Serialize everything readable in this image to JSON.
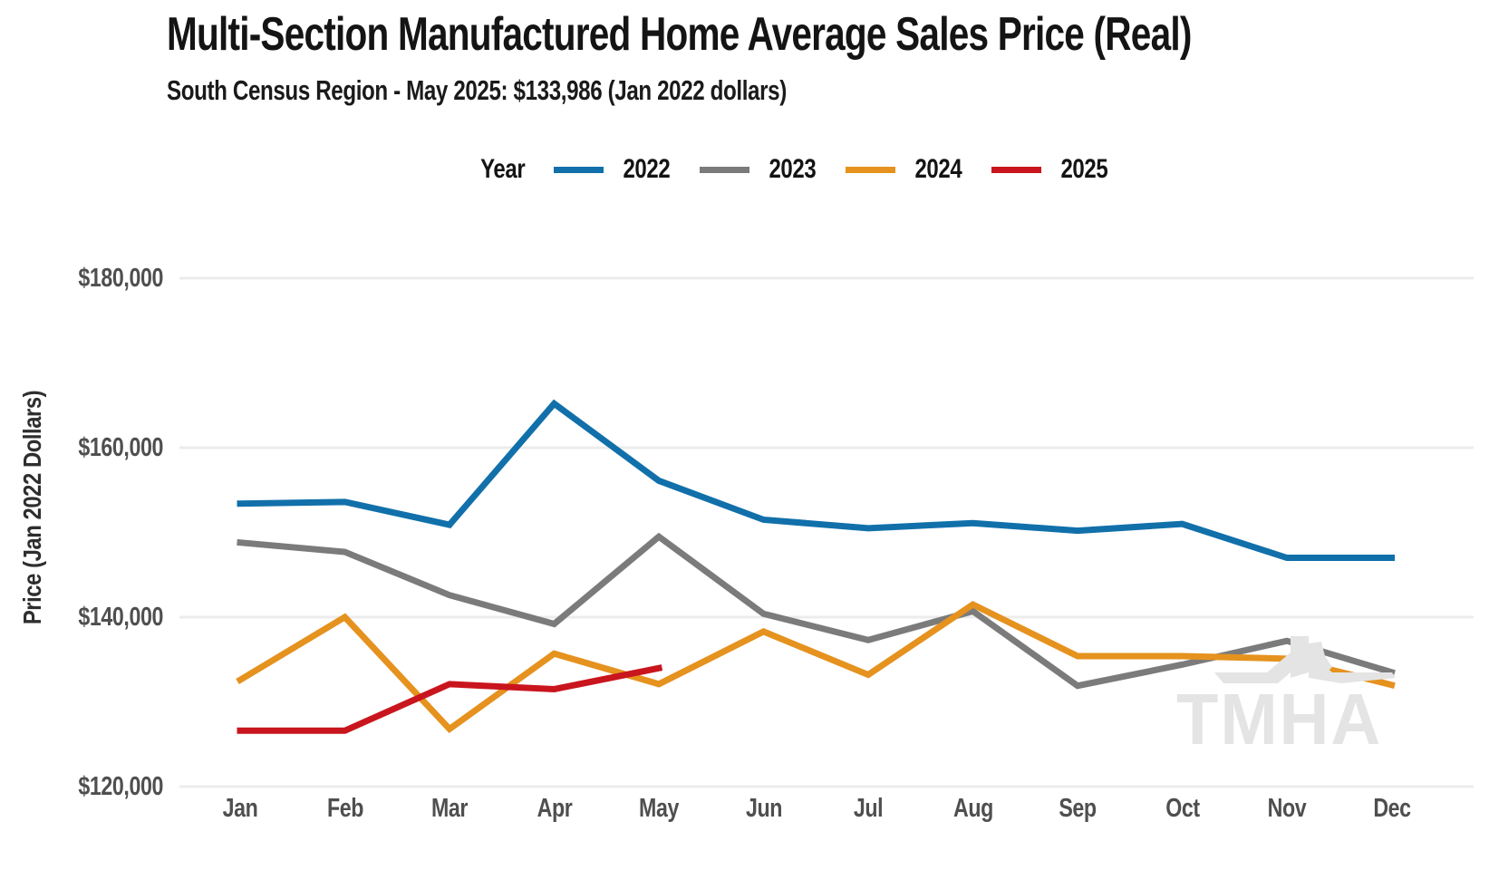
{
  "header": {
    "title": "Multi-Section Manufactured Home Average Sales Price (Real)",
    "subtitle": "South Census Region - May 2025: $133,986 (Jan 2022 dollars)"
  },
  "legend": {
    "label": "Year"
  },
  "y_axis": {
    "label": "Price (Jan 2022 Dollars)",
    "ticks": [
      "$120,000",
      "$140,000",
      "$160,000",
      "$180,000"
    ]
  },
  "watermark": {
    "text": "TMHA"
  },
  "chart_data": {
    "type": "line",
    "title": "Multi-Section Manufactured Home Average Sales Price (Real)",
    "subtitle": "South Census Region - May 2025: $133,986 (Jan 2022 dollars)",
    "xlabel": "",
    "ylabel": "Price (Jan 2022 Dollars)",
    "categories": [
      "Jan",
      "Feb",
      "Mar",
      "Apr",
      "May",
      "Jun",
      "Jul",
      "Aug",
      "Sep",
      "Oct",
      "Nov",
      "Dec"
    ],
    "ylim": [
      120000,
      180000
    ],
    "yticks": [
      120000,
      140000,
      160000,
      180000
    ],
    "grid": "horizontal",
    "legend_position": "top",
    "series": [
      {
        "name": "2022",
        "color": "#1170aa",
        "values": [
          153400,
          153600,
          150900,
          165200,
          156100,
          151500,
          150500,
          151100,
          150200,
          151000,
          147000,
          147000
        ]
      },
      {
        "name": "2023",
        "color": "#7b7b7b",
        "values": [
          148800,
          147700,
          142600,
          139200,
          149500,
          140400,
          137300,
          140700,
          131900,
          134400,
          137200,
          133500
        ]
      },
      {
        "name": "2024",
        "color": "#e5921e",
        "values": [
          132600,
          140000,
          126800,
          135700,
          132100,
          138300,
          133200,
          141500,
          135400,
          135400,
          135100,
          132000
        ]
      },
      {
        "name": "2025",
        "color": "#c9151d",
        "values": [
          126600,
          126600,
          132100,
          131500,
          133986
        ]
      }
    ]
  }
}
